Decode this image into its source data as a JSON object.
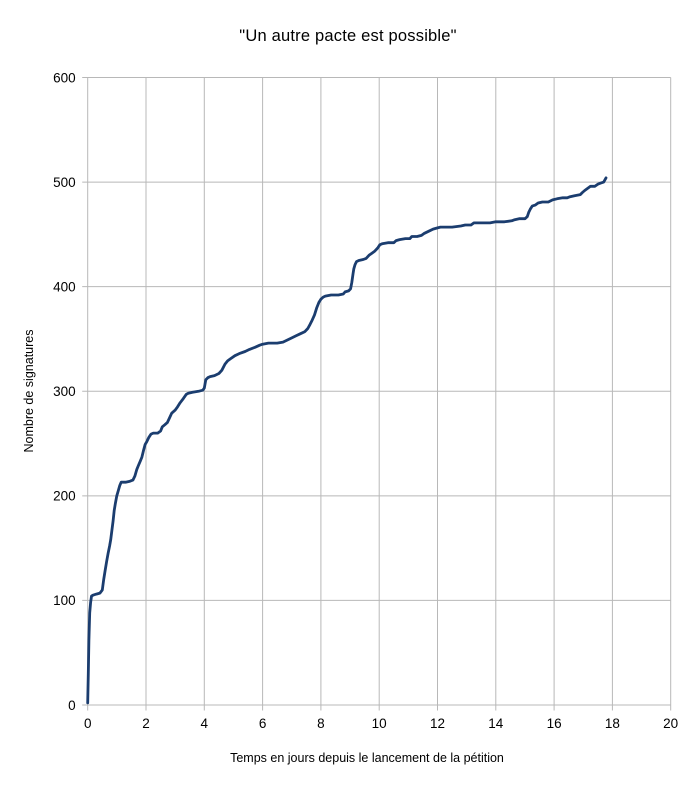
{
  "chart_data": {
    "type": "line",
    "title": "\"Un autre pacte est possible\"",
    "xlabel": "Temps en jours depuis le lancement de la pétition",
    "ylabel": "Nombre de signatures",
    "xlim": [
      0,
      20
    ],
    "ylim": [
      0,
      600
    ],
    "x_ticks": [
      0,
      2,
      4,
      6,
      8,
      10,
      12,
      14,
      16,
      18,
      20
    ],
    "y_ticks": [
      0,
      100,
      200,
      300,
      400,
      500,
      600
    ],
    "grid": true,
    "legend_position": "none",
    "series": [
      {
        "name": "signatures",
        "color": "#1b3d6f",
        "points": [
          [
            0.0,
            2
          ],
          [
            0.02,
            30
          ],
          [
            0.04,
            62
          ],
          [
            0.07,
            88
          ],
          [
            0.1,
            98
          ],
          [
            0.13,
            104
          ],
          [
            0.18,
            105
          ],
          [
            0.3,
            106
          ],
          [
            0.42,
            107
          ],
          [
            0.5,
            110
          ],
          [
            0.55,
            120
          ],
          [
            0.6,
            129
          ],
          [
            0.65,
            137
          ],
          [
            0.7,
            145
          ],
          [
            0.75,
            152
          ],
          [
            0.79,
            158
          ],
          [
            0.83,
            167
          ],
          [
            0.87,
            176
          ],
          [
            0.91,
            186
          ],
          [
            0.95,
            193
          ],
          [
            1.0,
            200
          ],
          [
            1.05,
            205
          ],
          [
            1.1,
            210
          ],
          [
            1.15,
            213
          ],
          [
            1.3,
            213
          ],
          [
            1.45,
            214
          ],
          [
            1.55,
            215
          ],
          [
            1.62,
            219
          ],
          [
            1.68,
            225
          ],
          [
            1.74,
            229
          ],
          [
            1.8,
            233
          ],
          [
            1.86,
            237
          ],
          [
            1.91,
            243
          ],
          [
            1.97,
            249
          ],
          [
            2.03,
            252
          ],
          [
            2.1,
            256
          ],
          [
            2.17,
            259
          ],
          [
            2.25,
            260
          ],
          [
            2.4,
            260
          ],
          [
            2.5,
            262
          ],
          [
            2.56,
            266
          ],
          [
            2.65,
            268
          ],
          [
            2.73,
            270
          ],
          [
            2.8,
            274
          ],
          [
            2.88,
            279
          ],
          [
            3.0,
            282
          ],
          [
            3.08,
            285
          ],
          [
            3.17,
            289
          ],
          [
            3.28,
            293
          ],
          [
            3.38,
            297
          ],
          [
            3.45,
            298
          ],
          [
            3.6,
            299
          ],
          [
            3.8,
            300
          ],
          [
            3.95,
            301
          ],
          [
            4.0,
            303
          ],
          [
            4.05,
            311
          ],
          [
            4.12,
            313
          ],
          [
            4.2,
            314
          ],
          [
            4.35,
            315
          ],
          [
            4.5,
            317
          ],
          [
            4.6,
            320
          ],
          [
            4.71,
            326
          ],
          [
            4.8,
            329
          ],
          [
            4.9,
            331
          ],
          [
            5.05,
            334
          ],
          [
            5.2,
            336
          ],
          [
            5.4,
            338
          ],
          [
            5.55,
            340
          ],
          [
            5.74,
            342
          ],
          [
            5.9,
            344
          ],
          [
            6.0,
            345
          ],
          [
            6.2,
            346
          ],
          [
            6.5,
            346
          ],
          [
            6.7,
            347
          ],
          [
            6.85,
            349
          ],
          [
            7.0,
            351
          ],
          [
            7.15,
            353
          ],
          [
            7.3,
            355
          ],
          [
            7.45,
            357
          ],
          [
            7.55,
            360
          ],
          [
            7.63,
            364
          ],
          [
            7.7,
            368
          ],
          [
            7.78,
            373
          ],
          [
            7.86,
            380
          ],
          [
            7.93,
            385
          ],
          [
            8.0,
            388
          ],
          [
            8.08,
            390
          ],
          [
            8.15,
            391
          ],
          [
            8.35,
            392
          ],
          [
            8.6,
            392
          ],
          [
            8.77,
            393
          ],
          [
            8.83,
            395
          ],
          [
            8.95,
            396
          ],
          [
            9.02,
            398
          ],
          [
            9.06,
            404
          ],
          [
            9.1,
            412
          ],
          [
            9.13,
            417
          ],
          [
            9.17,
            421
          ],
          [
            9.22,
            424
          ],
          [
            9.3,
            425
          ],
          [
            9.45,
            426
          ],
          [
            9.55,
            427
          ],
          [
            9.65,
            430
          ],
          [
            9.75,
            432
          ],
          [
            9.85,
            434
          ],
          [
            9.95,
            437
          ],
          [
            10.02,
            440
          ],
          [
            10.1,
            441
          ],
          [
            10.3,
            442
          ],
          [
            10.5,
            442
          ],
          [
            10.58,
            444
          ],
          [
            10.7,
            445
          ],
          [
            10.9,
            446
          ],
          [
            11.05,
            446
          ],
          [
            11.12,
            448
          ],
          [
            11.3,
            448
          ],
          [
            11.45,
            449
          ],
          [
            11.55,
            451
          ],
          [
            11.7,
            453
          ],
          [
            11.85,
            455
          ],
          [
            11.97,
            456
          ],
          [
            12.1,
            457
          ],
          [
            12.5,
            457
          ],
          [
            12.8,
            458
          ],
          [
            12.95,
            459
          ],
          [
            13.15,
            459
          ],
          [
            13.25,
            461
          ],
          [
            13.5,
            461
          ],
          [
            13.8,
            461
          ],
          [
            14.0,
            462
          ],
          [
            14.3,
            462
          ],
          [
            14.55,
            463
          ],
          [
            14.65,
            464
          ],
          [
            14.8,
            465
          ],
          [
            15.0,
            465
          ],
          [
            15.08,
            467
          ],
          [
            15.13,
            471
          ],
          [
            15.18,
            474
          ],
          [
            15.25,
            477
          ],
          [
            15.35,
            478
          ],
          [
            15.45,
            480
          ],
          [
            15.6,
            481
          ],
          [
            15.8,
            481
          ],
          [
            15.95,
            483
          ],
          [
            16.1,
            484
          ],
          [
            16.3,
            485
          ],
          [
            16.45,
            485
          ],
          [
            16.55,
            486
          ],
          [
            16.7,
            487
          ],
          [
            16.9,
            488
          ],
          [
            16.97,
            490
          ],
          [
            17.05,
            492
          ],
          [
            17.15,
            494
          ],
          [
            17.25,
            496
          ],
          [
            17.4,
            496
          ],
          [
            17.5,
            498
          ],
          [
            17.6,
            499
          ],
          [
            17.7,
            500
          ],
          [
            17.78,
            504
          ]
        ]
      }
    ]
  },
  "style": {
    "background": "#ffffff",
    "grid_color": "#b8b8b8",
    "text_color": "#000000",
    "line_color": "#1b3d6f"
  }
}
